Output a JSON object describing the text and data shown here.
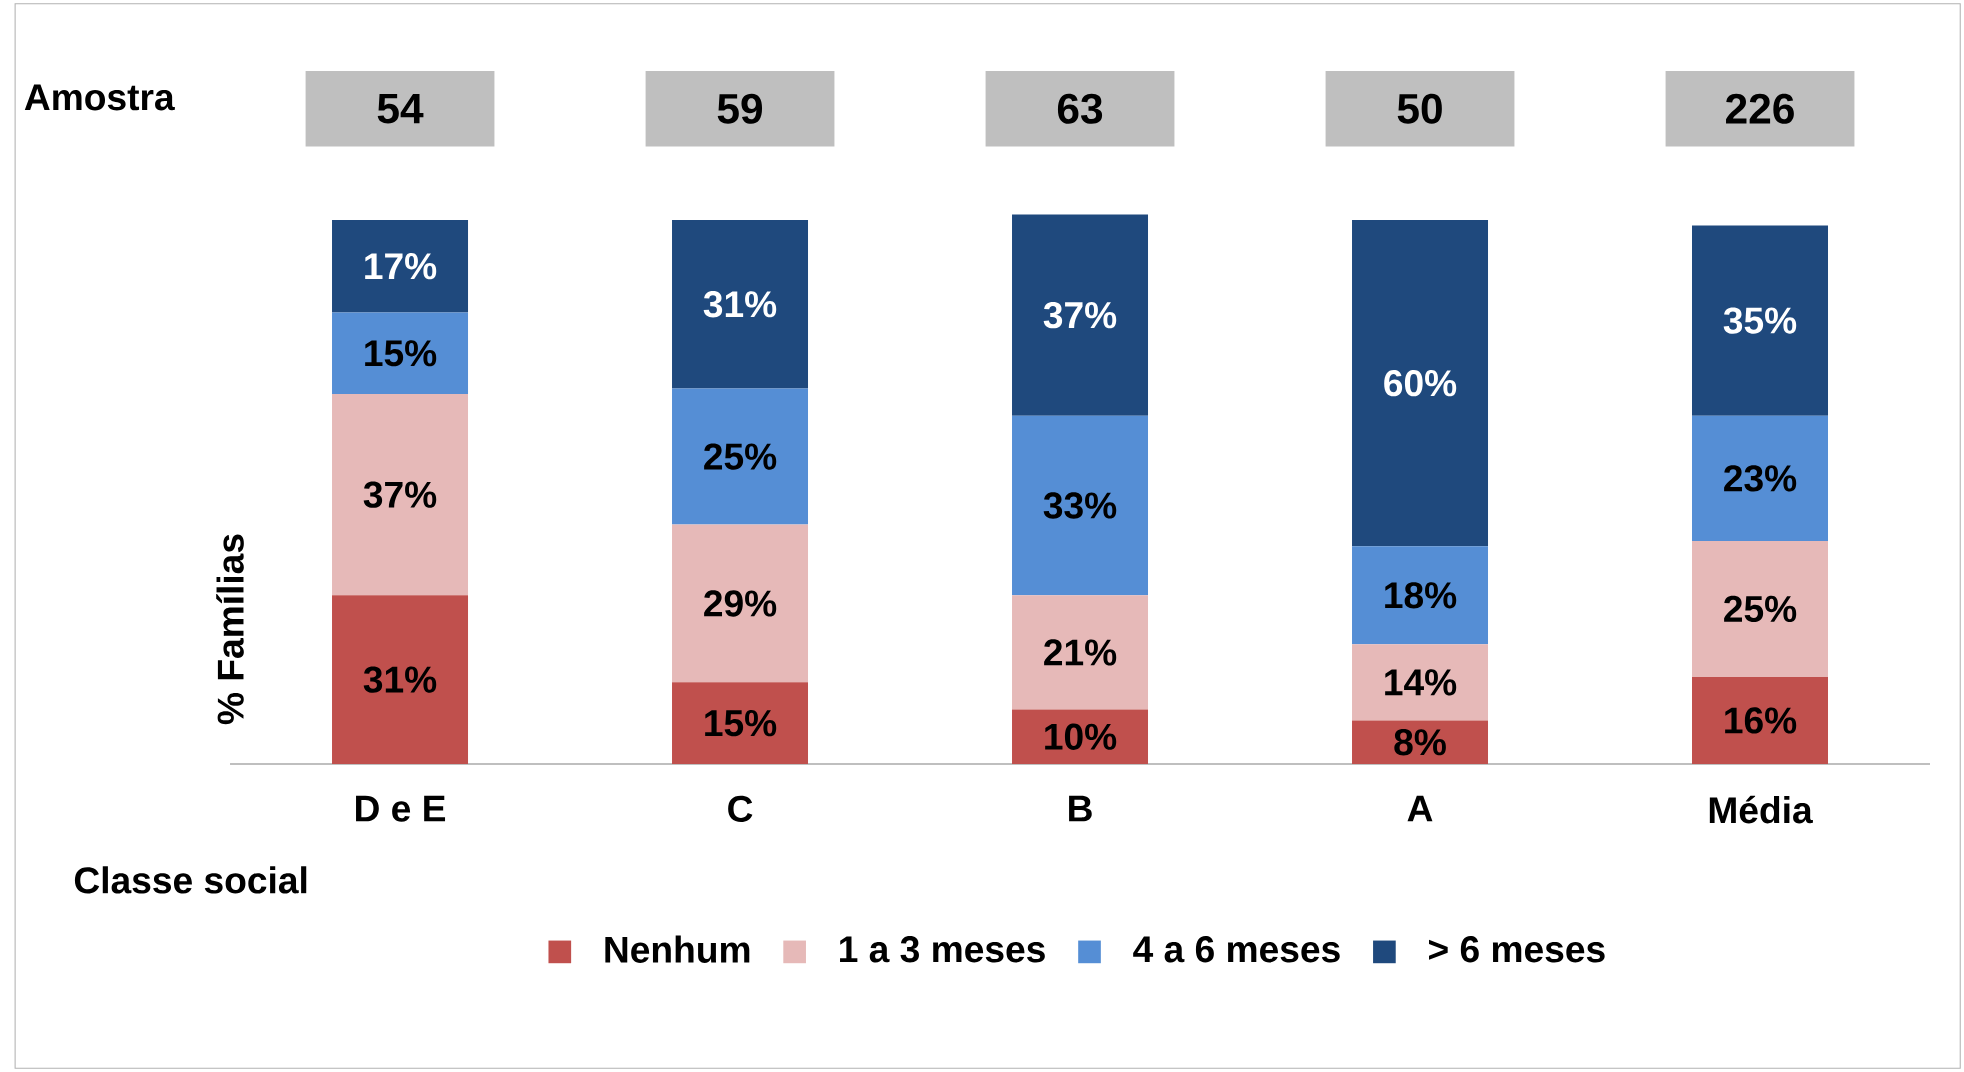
{
  "chart_data": {
    "type": "bar",
    "stacked": true,
    "xlabel": "Classe social",
    "ylabel": "% Famílias",
    "categories": [
      "D e E",
      "C",
      "B",
      "A",
      "Média"
    ],
    "series": [
      {
        "name": "Nenhum",
        "color": "#c0504d",
        "values": [
          31,
          15,
          10,
          8,
          16
        ],
        "value_labels": [
          "31%",
          "15%",
          "10%",
          "8%",
          "16%"
        ]
      },
      {
        "name": "1 a 3 meses",
        "color": "#e6b9b8",
        "values": [
          37,
          29,
          21,
          14,
          25
        ],
        "value_labels": [
          "37%",
          "29%",
          "21%",
          "14%",
          "25%"
        ]
      },
      {
        "name": "4 a 6 meses",
        "color": "#558ed5",
        "values": [
          15,
          25,
          33,
          18,
          23
        ],
        "value_labels": [
          "15%",
          "25%",
          "33%",
          "18%",
          "23%"
        ]
      },
      {
        "name": "> 6 meses",
        "color": "#1f497d",
        "values": [
          17,
          31,
          37,
          60,
          35
        ],
        "value_labels": [
          "17%",
          "31%",
          "37%",
          "60%",
          "35%"
        ]
      }
    ],
    "annotations": [
      "Amostra",
      "54",
      "59",
      "63",
      "50",
      "226"
    ],
    "legend": "bottom"
  }
}
